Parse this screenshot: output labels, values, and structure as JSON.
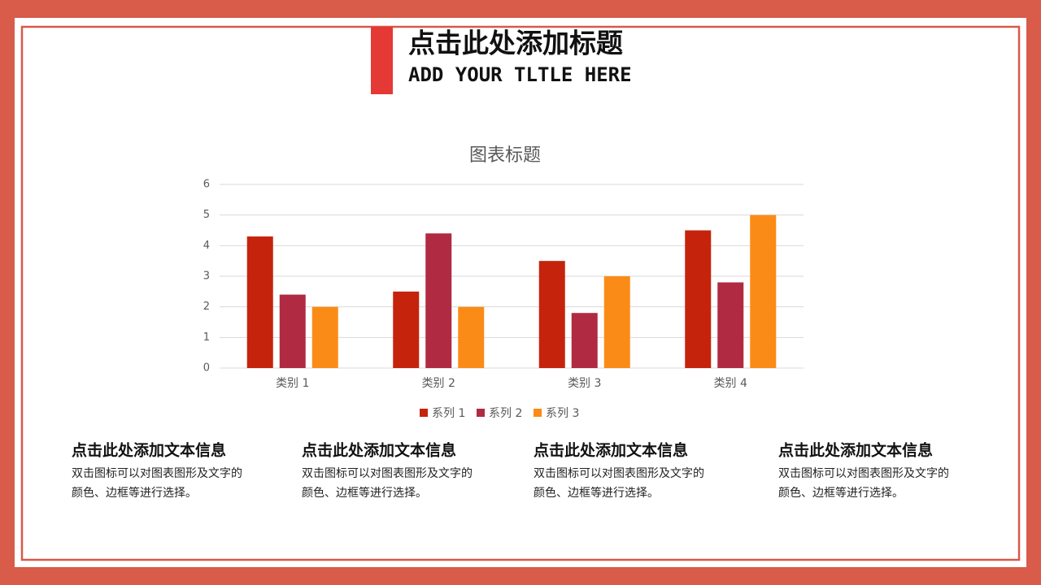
{
  "header": {
    "title": "点击此处添加标题",
    "subtitle": "ADD YOUR TLTLE HERE"
  },
  "chart_data": {
    "type": "bar",
    "title": "图表标题",
    "categories": [
      "类别 1",
      "类别 2",
      "类别 3",
      "类别 4"
    ],
    "series": [
      {
        "name": "系列 1",
        "color": "#c5230c",
        "values": [
          4.3,
          2.5,
          3.5,
          4.5
        ]
      },
      {
        "name": "系列 2",
        "color": "#b02a41",
        "values": [
          2.4,
          4.4,
          1.8,
          2.8
        ]
      },
      {
        "name": "系列 3",
        "color": "#fb8b17",
        "values": [
          2,
          2,
          3,
          5
        ]
      }
    ],
    "ylim": [
      0,
      6
    ],
    "yticks": [
      0,
      1,
      2,
      3,
      4,
      5,
      6
    ],
    "grid": true,
    "legend": "bottom"
  },
  "blocks": [
    {
      "heading": "点击此处添加文本信息",
      "lines": [
        "双击图标可以对图表图形及文字的",
        "颜色、边框等进行选择。"
      ]
    },
    {
      "heading": "点击此处添加文本信息",
      "lines": [
        "双击图标可以对图表图形及文字的",
        "颜色、边框等进行选择。"
      ]
    },
    {
      "heading": "点击此处添加文本信息",
      "lines": [
        "双击图标可以对图表图形及文字的",
        "颜色、边框等进行选择。"
      ]
    },
    {
      "heading": "点击此处添加文本信息",
      "lines": [
        "双击图标可以对图表图形及文字的",
        "颜色、边框等进行选择。"
      ]
    }
  ]
}
